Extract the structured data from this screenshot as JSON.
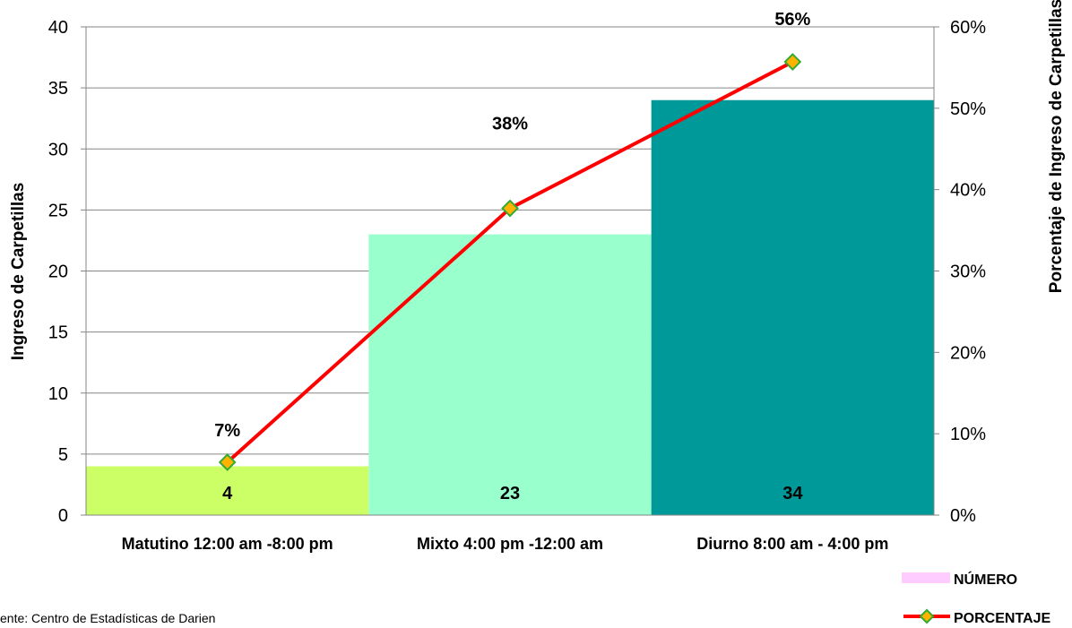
{
  "chart_data": {
    "type": "bar",
    "categories": [
      "Matutino 12:00 am -8:00 pm",
      "Mixto 4:00 pm -12:00 am",
      "Diurno 8:00 am - 4:00 pm"
    ],
    "series": [
      {
        "name": "NÚMERO",
        "kind": "bar",
        "axis": "left",
        "values": [
          4,
          23,
          34
        ],
        "colors": [
          "#ccff66",
          "#99ffcc",
          "#009999"
        ],
        "labels": [
          "4",
          "23",
          "34"
        ]
      },
      {
        "name": "PORCENTAJE",
        "kind": "line",
        "axis": "right",
        "values": [
          0.065,
          0.377,
          0.557
        ],
        "color": "#ff0000",
        "marker_fill": "#ffb300",
        "marker_stroke": "#33aa33",
        "labels": [
          "7%",
          "38%",
          "56%"
        ]
      }
    ],
    "ylabel": "Ingreso de Carpetillas",
    "y2label": "Porcentaje de Ingreso de Carpetillas",
    "ylim": [
      0,
      40
    ],
    "y2lim": [
      0,
      0.6
    ],
    "yticks": [
      "0",
      "5",
      "10",
      "15",
      "20",
      "25",
      "30",
      "35",
      "40"
    ],
    "y2ticks": [
      "0%",
      "10%",
      "20%",
      "30%",
      "40%",
      "50%",
      "60%"
    ],
    "grid": true,
    "legend_position": "bottom-right",
    "legend_swatch_color": "#ffccff",
    "source": "ente: Centro de Estadísticas de Darien"
  }
}
